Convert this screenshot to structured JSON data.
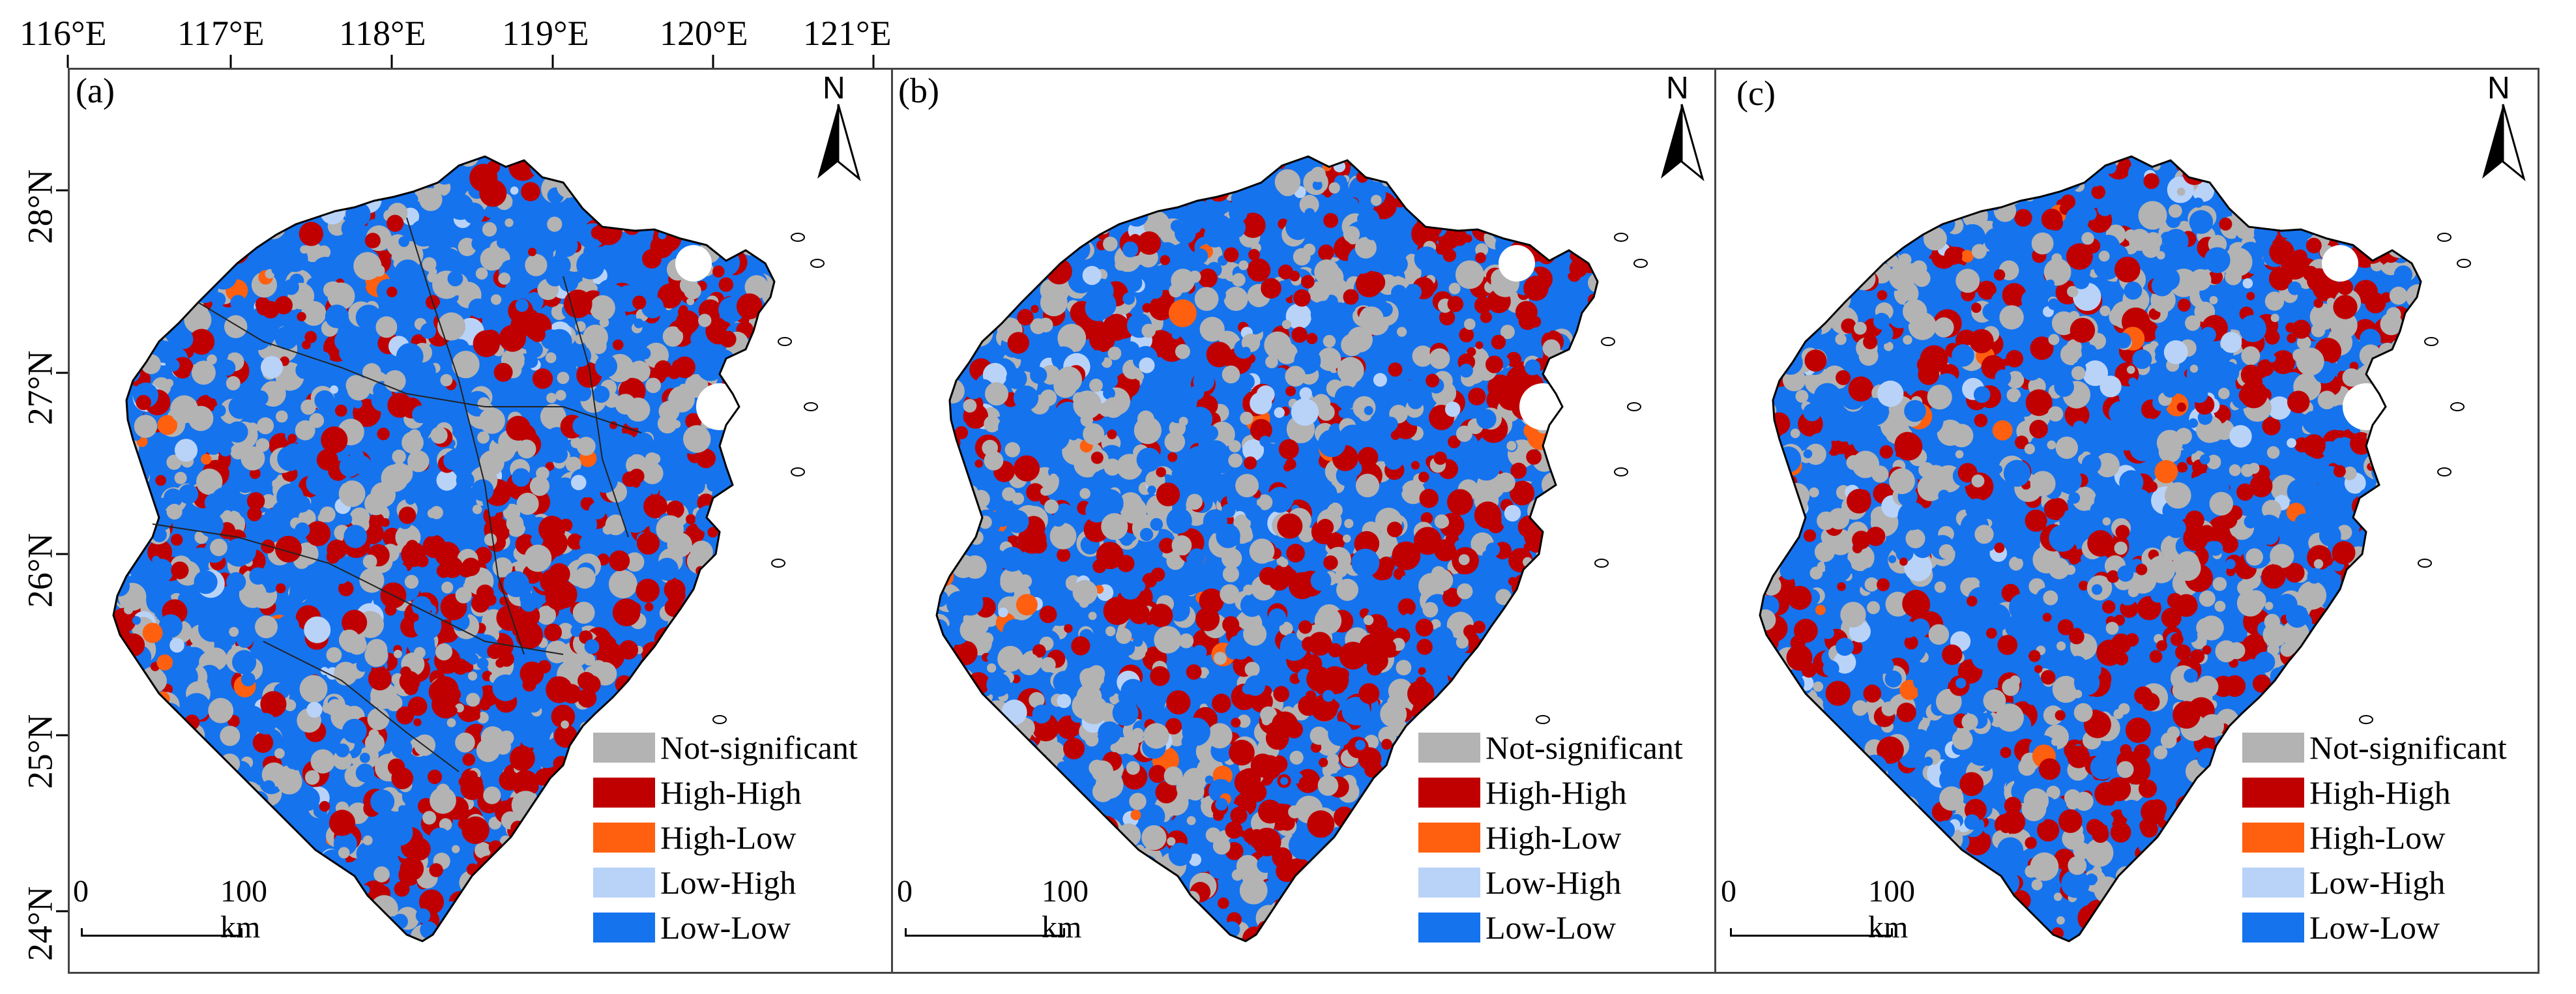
{
  "longitude_labels": [
    "116°E",
    "117°E",
    "118°E",
    "119°E",
    "120°E",
    "121°E"
  ],
  "latitude_labels": [
    "28°N",
    "27°N",
    "26°N",
    "25°N",
    "24°N"
  ],
  "panels": [
    {
      "id": "(a)",
      "north": "N",
      "scale_zero": "0",
      "scale_end": "100 km",
      "has_admin_boundaries": true
    },
    {
      "id": "(b)",
      "north": "N",
      "scale_zero": "0",
      "scale_end": "100 km",
      "has_admin_boundaries": false
    },
    {
      "id": "(c)",
      "north": "N",
      "scale_zero": "0",
      "scale_end": "100 km",
      "has_admin_boundaries": false
    }
  ],
  "legend": [
    {
      "label": "Not-significant",
      "color": "#b3b3b3"
    },
    {
      "label": "High-High",
      "color": "#c00000"
    },
    {
      "label": "High-Low",
      "color": "#ff6010"
    },
    {
      "label": "Low-High",
      "color": "#b9d3f8"
    },
    {
      "label": "Low-Low",
      "color": "#1573ee"
    }
  ]
}
